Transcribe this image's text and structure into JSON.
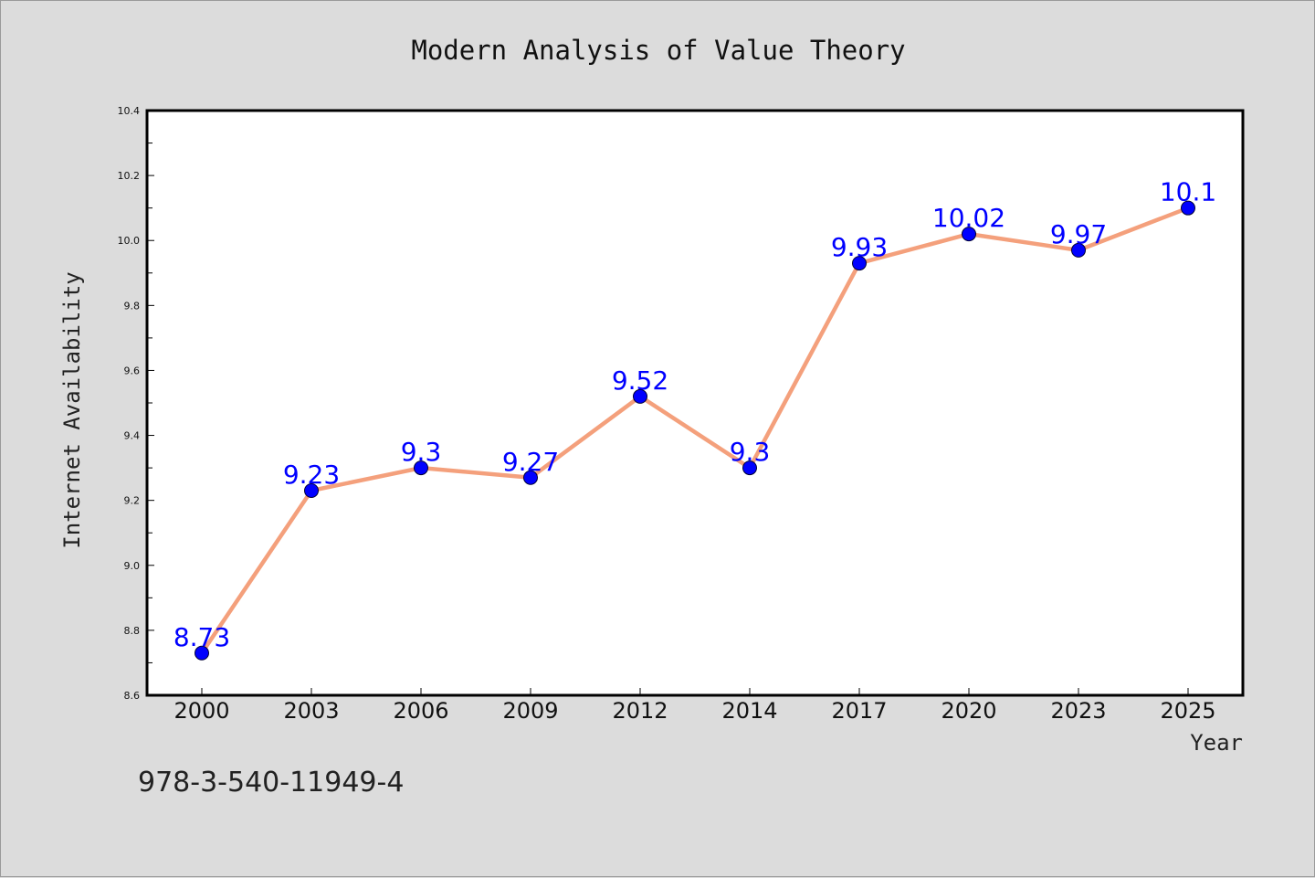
{
  "chart_data": {
    "type": "line",
    "title": "Modern Analysis of Value Theory",
    "xlabel": "Year",
    "ylabel": "Internet Availability",
    "categories": [
      "2000",
      "2003",
      "2006",
      "2009",
      "2012",
      "2014",
      "2017",
      "2020",
      "2023",
      "2025"
    ],
    "series": [
      {
        "values": [
          8.73,
          9.23,
          9.3,
          9.27,
          9.52,
          9.3,
          9.93,
          10.02,
          9.97,
          10.1
        ],
        "labels": [
          "8.73",
          "9.23",
          "9.3",
          "9.27",
          "9.52",
          "9.3",
          "9.93",
          "10.02",
          "9.97",
          "10.1"
        ]
      }
    ],
    "ylim": [
      8.6,
      10.4
    ],
    "yticks": [
      "8.6",
      "8.8",
      "9.0",
      "9.2",
      "9.4",
      "9.6",
      "9.8",
      "10.0",
      "10.2",
      "10.4"
    ],
    "grid": false,
    "legend": "none",
    "colors": {
      "line": "#f4a07c",
      "marker": "#0000ff",
      "label": "#0000ff",
      "background": "#dcdcdc",
      "plot_background": "#ffffff"
    }
  },
  "footnote": "978-3-540-11949-4"
}
